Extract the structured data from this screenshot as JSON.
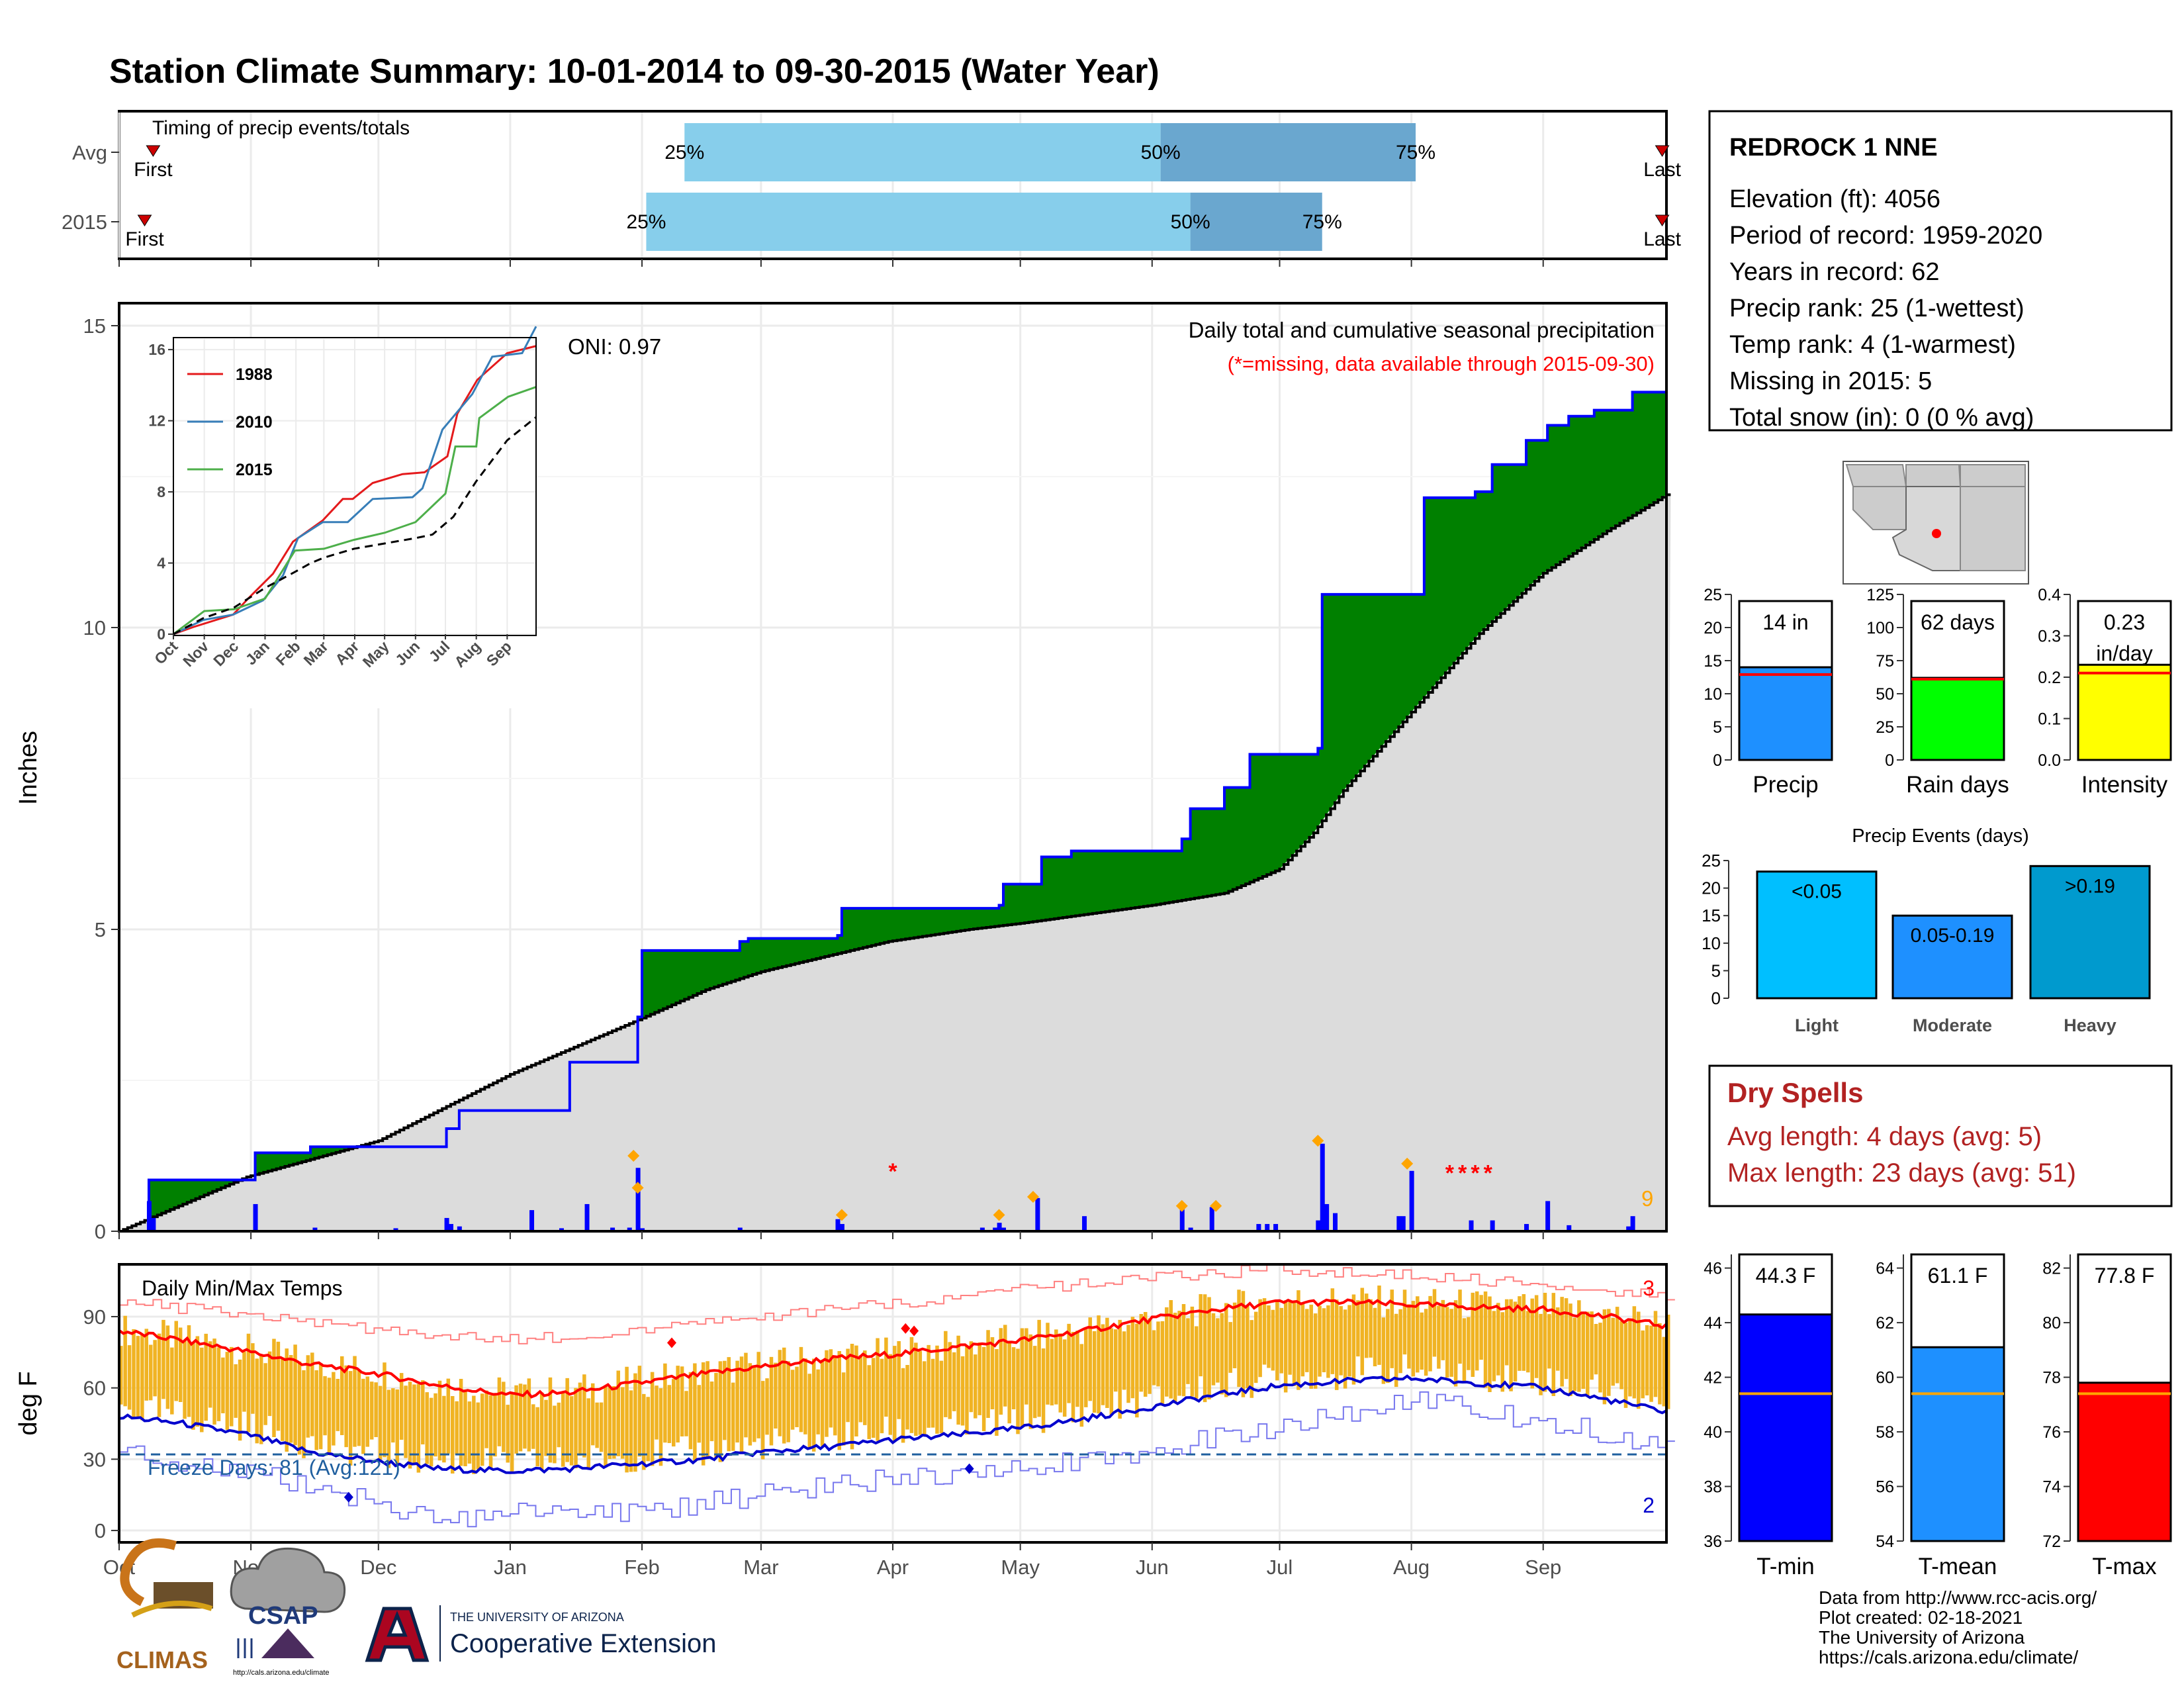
{
  "title": "Station Climate Summary: 10-01-2014 to 09-30-2015 (Water Year)",
  "colors": {
    "title": "#8b2500",
    "cum_fill": "#dcdcdc",
    "above": "#008000",
    "below": "#8b5a00",
    "line_current": "#0000ff",
    "precip_bar": "#0000ff",
    "marker": "#ffa500",
    "missing": "#ff0000",
    "temp_bar": "#f0b323",
    "tmax_avg": "#ff0000",
    "tmin_avg": "#0000cd",
    "record": "#ff8080",
    "record_low": "#7777ee",
    "freeze": "#1f5f9f",
    "timing_light": "#87ceeb",
    "timing_dark": "#6aa7cf",
    "dry_spell": "#b22222"
  },
  "months": [
    "Oct",
    "Nov",
    "Dec",
    "Jan",
    "Feb",
    "Mar",
    "Apr",
    "May",
    "Jun",
    "Jul",
    "Aug",
    "Sep"
  ],
  "timing": {
    "title": "Timing of precip events/totals",
    "rows": [
      {
        "label": "Avg",
        "first": "First",
        "last": "Last",
        "p25": "25%",
        "p50": "50%",
        "p75": "75%",
        "first_day": 8,
        "p25_day": 133,
        "p50_day": 245,
        "p75_day": 305,
        "last_day": 363
      },
      {
        "label": "2015",
        "first": "First",
        "last": "Last",
        "p25": "25%",
        "p50": "50%",
        "p75": "75%",
        "first_day": 6,
        "p25_day": 124,
        "p50_day": 252,
        "p75_day": 283,
        "last_day": 363
      }
    ]
  },
  "precip": {
    "y_axis_title": "Inches",
    "ylim": [
      0,
      15
    ],
    "yticks": [
      "0",
      "5",
      "10",
      "15"
    ],
    "note_title": "Daily total and cumulative seasonal precipitation",
    "note_missing": "(*=missing, data available through 2015-09-30)",
    "oni": "ONI: 0.97",
    "missing_count": "9",
    "cum_avg": [
      [
        0,
        0
      ],
      [
        30,
        0.9
      ],
      [
        61,
        1.5
      ],
      [
        92,
        2.6
      ],
      [
        122,
        3.5
      ],
      [
        138,
        4.0
      ],
      [
        151,
        4.3
      ],
      [
        181,
        4.8
      ],
      [
        200,
        5.0
      ],
      [
        212,
        5.1
      ],
      [
        243,
        5.4
      ],
      [
        260,
        5.6
      ],
      [
        273,
        6.0
      ],
      [
        281,
        6.6
      ],
      [
        288,
        7.3
      ],
      [
        304,
        8.6
      ],
      [
        320,
        9.9
      ],
      [
        335,
        10.9
      ],
      [
        350,
        11.6
      ],
      [
        364,
        12.2
      ]
    ],
    "cum_2015": [
      [
        0,
        0
      ],
      [
        7,
        0.85
      ],
      [
        31,
        0.85
      ],
      [
        32,
        1.3
      ],
      [
        45,
        1.4
      ],
      [
        60,
        1.4
      ],
      [
        77,
        1.7
      ],
      [
        80,
        2.0
      ],
      [
        92,
        2.0
      ],
      [
        106,
        2.8
      ],
      [
        121,
        2.8
      ],
      [
        122,
        3.55
      ],
      [
        123,
        4.65
      ],
      [
        146,
        4.8
      ],
      [
        148,
        4.85
      ],
      [
        169,
        4.9
      ],
      [
        170,
        5.35
      ],
      [
        207,
        5.4
      ],
      [
        208,
        5.75
      ],
      [
        216,
        5.75
      ],
      [
        217,
        6.2
      ],
      [
        224,
        6.3
      ],
      [
        243,
        6.3
      ],
      [
        250,
        6.5
      ],
      [
        252,
        7.0
      ],
      [
        260,
        7.35
      ],
      [
        266,
        7.9
      ],
      [
        282,
        8.0
      ],
      [
        283,
        10.55
      ],
      [
        304,
        10.55
      ],
      [
        307,
        12.15
      ],
      [
        319,
        12.25
      ],
      [
        323,
        12.7
      ],
      [
        331,
        13.1
      ],
      [
        336,
        13.35
      ],
      [
        341,
        13.5
      ],
      [
        347,
        13.6
      ],
      [
        355,
        13.6
      ],
      [
        356,
        13.9
      ],
      [
        364,
        13.9
      ]
    ],
    "daily": [
      [
        7,
        0.5
      ],
      [
        8,
        0.22
      ],
      [
        32,
        0.45
      ],
      [
        46,
        0.06
      ],
      [
        65,
        0.05
      ],
      [
        77,
        0.22
      ],
      [
        78,
        0.12
      ],
      [
        80,
        0.08
      ],
      [
        97,
        0.35
      ],
      [
        104,
        0.05
      ],
      [
        110,
        0.45
      ],
      [
        116,
        0.06
      ],
      [
        120,
        0.06
      ],
      [
        122,
        1.05
      ],
      [
        123,
        0.05
      ],
      [
        146,
        0.06
      ],
      [
        169,
        0.2
      ],
      [
        170,
        0.12
      ],
      [
        203,
        0.06
      ],
      [
        206,
        0.06
      ],
      [
        207,
        0.14
      ],
      [
        208,
        0.06
      ],
      [
        216,
        0.55
      ],
      [
        227,
        0.25
      ],
      [
        250,
        0.4
      ],
      [
        252,
        0.06
      ],
      [
        257,
        0.4
      ],
      [
        268,
        0.12
      ],
      [
        270,
        0.12
      ],
      [
        272,
        0.12
      ],
      [
        282,
        0.18
      ],
      [
        283,
        1.45
      ],
      [
        284,
        0.45
      ],
      [
        286,
        0.3
      ],
      [
        301,
        0.25
      ],
      [
        302,
        0.25
      ],
      [
        304,
        1.0
      ],
      [
        318,
        0.18
      ],
      [
        323,
        0.18
      ],
      [
        331,
        0.12
      ],
      [
        336,
        0.5
      ],
      [
        341,
        0.1
      ],
      [
        355,
        0.08
      ],
      [
        356,
        0.25
      ]
    ],
    "markers": [
      [
        121,
        1.25
      ],
      [
        122,
        0.72
      ],
      [
        170,
        0.27
      ],
      [
        207,
        0.27
      ],
      [
        215,
        0.57
      ],
      [
        250,
        0.42
      ],
      [
        258,
        0.42
      ],
      [
        282,
        1.5
      ],
      [
        303,
        1.12
      ]
    ],
    "missing_days": [
      [
        182,
        1.0
      ],
      [
        313,
        0.97
      ],
      [
        316,
        0.97
      ],
      [
        319,
        0.97
      ],
      [
        322,
        0.97
      ]
    ]
  },
  "inset": {
    "ylim": [
      0,
      16
    ],
    "yticks": [
      "0",
      "4",
      "8",
      "12",
      "16"
    ],
    "xticks": [
      "Oct",
      "Nov",
      "Dec",
      "Jan",
      "Feb",
      "Mar",
      "Apr",
      "May",
      "Jun",
      "Jul",
      "Aug",
      "Sep"
    ],
    "series": [
      {
        "name": "1988",
        "color": "#e41a1c",
        "points": [
          [
            0,
            0
          ],
          [
            20,
            0.4
          ],
          [
            60,
            1.1
          ],
          [
            75,
            2
          ],
          [
            100,
            3.4
          ],
          [
            120,
            5.2
          ],
          [
            150,
            6.4
          ],
          [
            170,
            7.6
          ],
          [
            180,
            7.6
          ],
          [
            200,
            8.5
          ],
          [
            230,
            9
          ],
          [
            252,
            9.1
          ],
          [
            275,
            10.0
          ],
          [
            285,
            12.4
          ],
          [
            305,
            14.3
          ],
          [
            335,
            15.8
          ],
          [
            364,
            16.2
          ]
        ]
      },
      {
        "name": "2010",
        "color": "#377eb8",
        "points": [
          [
            0,
            0
          ],
          [
            30,
            0.8
          ],
          [
            60,
            1.1
          ],
          [
            90,
            1.9
          ],
          [
            110,
            3.3
          ],
          [
            125,
            5.4
          ],
          [
            150,
            6.3
          ],
          [
            175,
            6.3
          ],
          [
            200,
            7.6
          ],
          [
            240,
            7.7
          ],
          [
            250,
            8.2
          ],
          [
            270,
            11.5
          ],
          [
            300,
            13.5
          ],
          [
            320,
            15.6
          ],
          [
            350,
            15.8
          ],
          [
            364,
            17.3
          ]
        ]
      },
      {
        "name": "2015",
        "color": "#4daf4a",
        "points": [
          [
            0,
            0
          ],
          [
            31,
            1.3
          ],
          [
            61,
            1.4
          ],
          [
            92,
            2.0
          ],
          [
            122,
            4.7
          ],
          [
            151,
            4.8
          ],
          [
            181,
            5.3
          ],
          [
            212,
            5.7
          ],
          [
            243,
            6.3
          ],
          [
            273,
            7.9
          ],
          [
            283,
            10.55
          ],
          [
            304,
            10.55
          ],
          [
            307,
            12.15
          ],
          [
            336,
            13.35
          ],
          [
            364,
            13.9
          ]
        ]
      },
      {
        "name": "",
        "color": "#000000",
        "dash": true,
        "points": [
          [
            0,
            0
          ],
          [
            30,
            0.9
          ],
          [
            61,
            1.5
          ],
          [
            92,
            2.6
          ],
          [
            122,
            3.5
          ],
          [
            138,
            4.0
          ],
          [
            151,
            4.3
          ],
          [
            181,
            4.8
          ],
          [
            212,
            5.1
          ],
          [
            243,
            5.4
          ],
          [
            260,
            5.6
          ],
          [
            281,
            6.6
          ],
          [
            304,
            8.6
          ],
          [
            335,
            10.9
          ],
          [
            364,
            12.2
          ]
        ]
      }
    ]
  },
  "temps": {
    "y_axis_title": "deg F",
    "ylim": [
      -5,
      112
    ],
    "yticks": [
      "0",
      "30",
      "60",
      "90"
    ],
    "title": "Daily Min/Max Temps",
    "freeze_text": "Freeze Days: 81 (Avg:121)",
    "freeze_line": 32,
    "record_high_count": "3",
    "record_low_count": "2",
    "avg_max": [
      [
        0,
        84
      ],
      [
        15,
        80
      ],
      [
        31,
        75
      ],
      [
        45,
        70
      ],
      [
        61,
        66
      ],
      [
        75,
        61
      ],
      [
        92,
        57
      ],
      [
        106,
        58
      ],
      [
        122,
        62
      ],
      [
        138,
        66
      ],
      [
        151,
        69
      ],
      [
        166,
        72
      ],
      [
        181,
        74
      ],
      [
        196,
        77
      ],
      [
        212,
        80
      ],
      [
        227,
        84
      ],
      [
        243,
        89
      ],
      [
        258,
        93
      ],
      [
        273,
        96
      ],
      [
        290,
        96
      ],
      [
        304,
        95
      ],
      [
        320,
        94
      ],
      [
        335,
        93
      ],
      [
        350,
        90
      ],
      [
        364,
        86
      ]
    ],
    "avg_min": [
      [
        0,
        48
      ],
      [
        15,
        45
      ],
      [
        31,
        40
      ],
      [
        45,
        33
      ],
      [
        61,
        29
      ],
      [
        75,
        26
      ],
      [
        92,
        25
      ],
      [
        106,
        26
      ],
      [
        122,
        28
      ],
      [
        138,
        30
      ],
      [
        151,
        33
      ],
      [
        166,
        35
      ],
      [
        181,
        38
      ],
      [
        196,
        40
      ],
      [
        212,
        43
      ],
      [
        227,
        47
      ],
      [
        243,
        52
      ],
      [
        258,
        57
      ],
      [
        273,
        61
      ],
      [
        290,
        63
      ],
      [
        304,
        64
      ],
      [
        320,
        62
      ],
      [
        335,
        60
      ],
      [
        350,
        55
      ],
      [
        364,
        50
      ]
    ],
    "rec_max": [
      [
        0,
        96
      ],
      [
        31,
        91
      ],
      [
        61,
        84
      ],
      [
        92,
        80
      ],
      [
        122,
        84
      ],
      [
        151,
        90
      ],
      [
        181,
        95
      ],
      [
        212,
        101
      ],
      [
        243,
        107
      ],
      [
        273,
        110
      ],
      [
        304,
        107
      ],
      [
        335,
        104
      ],
      [
        364,
        99
      ]
    ],
    "rec_min": [
      [
        0,
        34
      ],
      [
        31,
        24
      ],
      [
        61,
        12
      ],
      [
        76,
        3
      ],
      [
        92,
        8
      ],
      [
        122,
        8
      ],
      [
        151,
        15
      ],
      [
        181,
        22
      ],
      [
        212,
        27
      ],
      [
        243,
        34
      ],
      [
        273,
        44
      ],
      [
        304,
        55
      ],
      [
        335,
        46
      ],
      [
        364,
        36
      ]
    ],
    "record_highs": [
      [
        130,
        79
      ],
      [
        185,
        85
      ],
      [
        187,
        84
      ]
    ],
    "record_lows": [
      [
        54,
        14
      ],
      [
        200,
        26
      ]
    ]
  },
  "station": {
    "name": "REDROCK 1 NNE",
    "lines": [
      "Elevation (ft): 4056",
      "Period of record: 1959-2020",
      "Years in record: 62",
      "Precip rank: 25 (1-wettest)",
      "Temp rank: 4 (1-warmest)",
      "Missing in 2015: 5",
      "Total snow (in): 0 (0 % avg)"
    ]
  },
  "mini_bars": [
    {
      "label": "Precip",
      "value_text": "14 in",
      "value": 14,
      "avg": 12.9,
      "ylim": [
        0,
        25
      ],
      "yticks": [
        "0",
        "5",
        "10",
        "15",
        "20",
        "25"
      ],
      "color": "#1e90ff"
    },
    {
      "label": "Rain days",
      "value_text": "62 days",
      "value": 62,
      "avg": 61,
      "ylim": [
        0,
        125
      ],
      "yticks": [
        "0",
        "25",
        "50",
        "75",
        "100",
        "125"
      ],
      "color": "#00ff00"
    },
    {
      "label": "Intensity",
      "value_text": "0.23",
      "value_text2": "in/day",
      "value": 0.23,
      "avg": 0.21,
      "ylim": [
        0,
        0.4
      ],
      "yticks": [
        "0.0",
        "0.1",
        "0.2",
        "0.3",
        "0.4"
      ],
      "color": "#ffff00"
    }
  ],
  "events": {
    "title": "Precip Events (days)",
    "ylim": [
      0,
      25
    ],
    "yticks": [
      "0",
      "5",
      "10",
      "15",
      "20",
      "25"
    ],
    "bars": [
      {
        "label": "Light",
        "bar_text": "<0.05",
        "value": 23,
        "color": "#00bfff"
      },
      {
        "label": "Moderate",
        "bar_text": "0.05-0.19",
        "value": 15,
        "color": "#1e90ff"
      },
      {
        "label": "Heavy",
        "bar_text": ">0.19",
        "value": 24,
        "color": "#009ace"
      }
    ]
  },
  "dry_spells": {
    "title": "Dry Spells",
    "avg": "Avg length: 4 days (avg: 5)",
    "max": "Max length: 23 days (avg: 51)"
  },
  "temp_bars": [
    {
      "label": "T-min",
      "value_text": "44.3 F",
      "value": 44.3,
      "avg": 41.4,
      "ylim": [
        36,
        46.5
      ],
      "yticks": [
        "36",
        "38",
        "40",
        "42",
        "44",
        "46"
      ],
      "color": "#0000ff"
    },
    {
      "label": "T-mean",
      "value_text": "61.1 F",
      "value": 61.1,
      "avg": 59.4,
      "ylim": [
        54,
        64.5
      ],
      "yticks": [
        "54",
        "56",
        "58",
        "60",
        "62",
        "64"
      ],
      "color": "#1e90ff"
    },
    {
      "label": "T-max",
      "value_text": "77.8 F",
      "value": 77.8,
      "avg": 77.4,
      "ylim": [
        72,
        82.5
      ],
      "yticks": [
        "72",
        "74",
        "76",
        "78",
        "80",
        "82"
      ],
      "color": "#ff0000"
    }
  ],
  "footer": {
    "lines": [
      "Data from http://www.rcc-acis.org/",
      "Plot created: 02-18-2021",
      "The University of Arizona",
      "https://cals.arizona.edu/climate/"
    ],
    "climas": "CLIMAS",
    "csap": "CSAP",
    "csap_url": "http://cals.arizona.edu/climate",
    "ua_top": "THE UNIVERSITY OF ARIZONA",
    "ua_bottom": "Cooperative Extension"
  }
}
